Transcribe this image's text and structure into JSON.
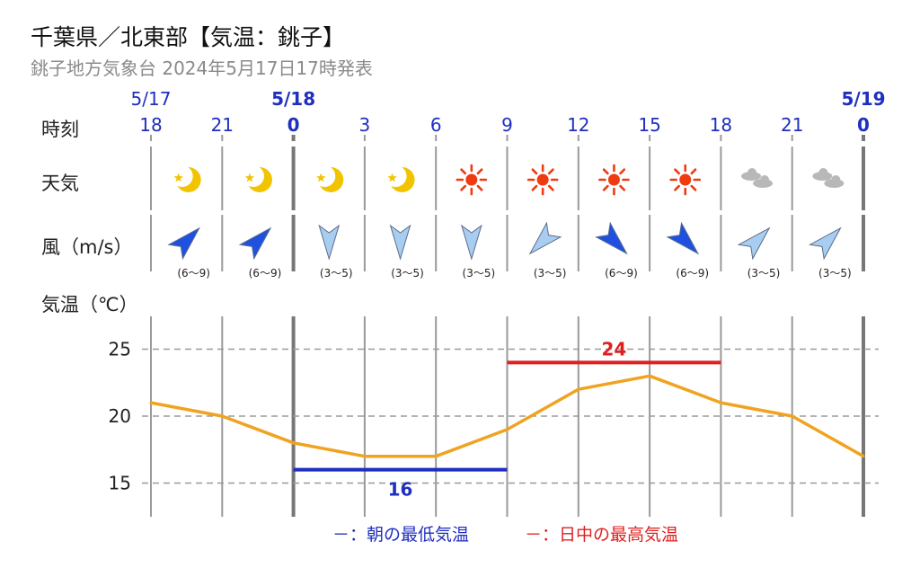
{
  "header": {
    "title": "千葉県／北東部【気温：銚子】",
    "subtitle": "銚子地方気象台 2024年5月17日17時発表"
  },
  "rows": {
    "time_label": "時刻",
    "weather_label": "天気",
    "wind_label": "風（m/s）",
    "temp_label": "気温（℃）"
  },
  "dates": [
    {
      "label": "5/17",
      "hour": "18",
      "bold": false
    },
    {
      "label": "5/18",
      "hour": "0",
      "bold": true
    },
    {
      "label": "5/19",
      "hour": "0",
      "bold": true
    }
  ],
  "hours": [
    "18",
    "21",
    "0",
    "3",
    "6",
    "9",
    "12",
    "15",
    "18",
    "21",
    "0"
  ],
  "colors": {
    "date": "#1f2fbf",
    "line": "#f0a321",
    "max": "#e02020",
    "min": "#1f2fbf",
    "grid": "#9a9a9a",
    "sun": "#f03a10",
    "moon": "#f2c400",
    "cloud": "#b8b8b8",
    "arrow_strong": "#2050e0",
    "arrow_weak": "#a9cdf0"
  },
  "weather": [
    {
      "icon": "crescent-moon-icon"
    },
    {
      "icon": "crescent-moon-icon"
    },
    {
      "icon": "crescent-moon-icon"
    },
    {
      "icon": "crescent-moon-icon"
    },
    {
      "icon": "sun-icon"
    },
    {
      "icon": "sun-icon"
    },
    {
      "icon": "sun-icon"
    },
    {
      "icon": "sun-icon"
    },
    {
      "icon": "cloud-icon"
    },
    {
      "icon": "cloud-icon"
    }
  ],
  "wind": [
    {
      "direction": "南西",
      "speed": "(6～9)",
      "strong": true
    },
    {
      "direction": "南西",
      "speed": "(6～9)",
      "strong": true
    },
    {
      "direction": "北",
      "speed": "(3～5)",
      "strong": false
    },
    {
      "direction": "北",
      "speed": "(3～5)",
      "strong": false
    },
    {
      "direction": "北",
      "speed": "(3～5)",
      "strong": false
    },
    {
      "direction": "北東",
      "speed": "(3～5)",
      "strong": false
    },
    {
      "direction": "北西",
      "speed": "(6～9)",
      "strong": true
    },
    {
      "direction": "北西",
      "speed": "(6～9)",
      "strong": true
    },
    {
      "direction": "南西",
      "speed": "(3～5)",
      "strong": false
    },
    {
      "direction": "南西",
      "speed": "(3～5)",
      "strong": false
    }
  ],
  "legend": {
    "min_label": "－：朝の最低気温",
    "max_label": "－：日中の最高気温"
  },
  "chart_data": {
    "type": "line",
    "x": [
      "18",
      "21",
      "0",
      "3",
      "6",
      "9",
      "12",
      "15",
      "18",
      "21",
      "0"
    ],
    "series": [
      {
        "values": [
          21,
          20,
          18,
          17,
          17,
          19,
          22,
          23,
          21,
          20,
          17
        ]
      }
    ],
    "ylabel": "気温（℃）",
    "yticks": [
      15,
      20,
      25
    ],
    "grid": true,
    "min_temp": {
      "value": 16,
      "label": "16",
      "from": "0",
      "to": "9"
    },
    "max_temp": {
      "value": 24,
      "label": "24",
      "from": "9",
      "to": "18"
    }
  }
}
